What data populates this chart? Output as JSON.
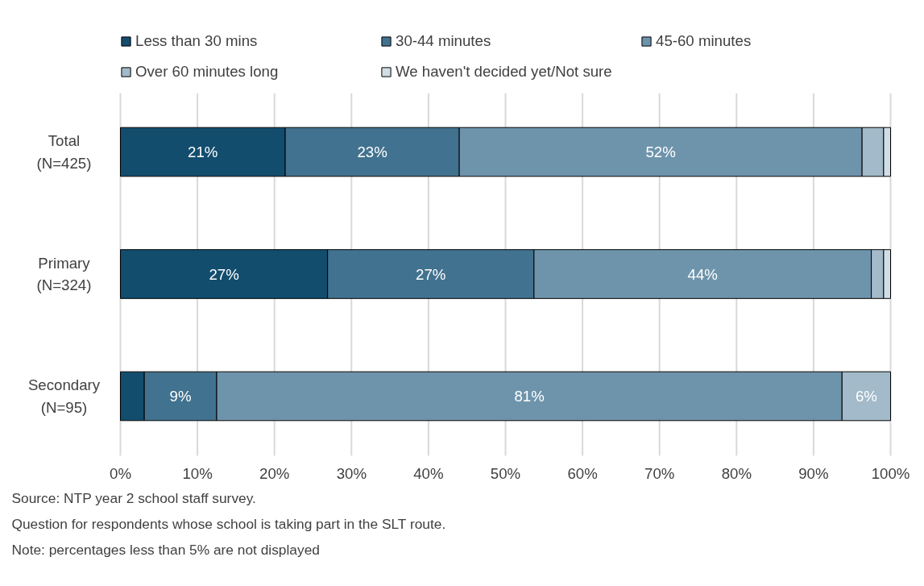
{
  "chart_data": {
    "type": "bar",
    "orientation": "horizontal",
    "stacked": true,
    "categories": [
      "Total\n(N=425)",
      "Primary\n(N=324)",
      "Secondary\n(N=95)"
    ],
    "series": [
      {
        "name": "Less than 30 mins",
        "color": "#124d6e",
        "values": [
          21.4,
          26.9,
          3.1
        ],
        "value_labels": [
          "21%",
          "27%",
          null
        ]
      },
      {
        "name": "30-44 minutes",
        "color": "#41728f",
        "values": [
          22.6,
          26.8,
          9.4
        ],
        "value_labels": [
          "23%",
          "27%",
          "9%"
        ]
      },
      {
        "name": "45-60 minutes",
        "color": "#6e94ac",
        "values": [
          52.3,
          43.8,
          81.2
        ],
        "value_labels": [
          "52%",
          "44%",
          "81%"
        ]
      },
      {
        "name": "Over 60 minutes long",
        "color": "#a2bac9",
        "values": [
          2.8,
          1.6,
          6.3
        ],
        "value_labels": [
          null,
          null,
          "6%"
        ]
      },
      {
        "name": "We haven't decided yet/Not sure",
        "color": "#d0dde5",
        "values": [
          0.9,
          0.9,
          null
        ],
        "value_labels": [
          null,
          null,
          null
        ]
      }
    ],
    "xlim": [
      0,
      100
    ],
    "xticks": [
      {
        "value": 0,
        "label": "0%"
      },
      {
        "value": 10,
        "label": "10%"
      },
      {
        "value": 20,
        "label": "20%"
      },
      {
        "value": 30,
        "label": "30%"
      },
      {
        "value": 40,
        "label": "40%"
      },
      {
        "value": 50,
        "label": "50%"
      },
      {
        "value": 60,
        "label": "60%"
      },
      {
        "value": 70,
        "label": "70%"
      },
      {
        "value": 80,
        "label": "80%"
      },
      {
        "value": 90,
        "label": "90%"
      },
      {
        "value": 100,
        "label": "100%"
      }
    ],
    "grid": "x",
    "legend": "top",
    "annotations": [
      "Source: NTP year 2 school staff survey.",
      "Question for respondents whose school is taking part in the SLT route.",
      "Note: percentages less than 5% are not displayed"
    ]
  }
}
